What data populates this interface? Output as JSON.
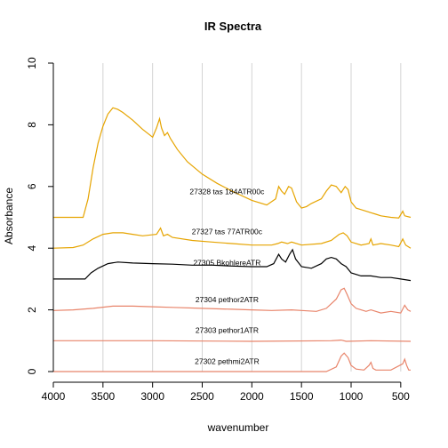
{
  "chart_data": {
    "type": "line",
    "title": "IR Spectra",
    "xlabel": "wavenumber",
    "ylabel": "Absorbance",
    "xlim": [
      4000,
      400
    ],
    "ylim": [
      0,
      10
    ],
    "reverse_x": true,
    "grid": "vertical",
    "x_ticks": [
      4000,
      3500,
      3000,
      2500,
      2000,
      1500,
      1000,
      500
    ],
    "y_ticks": [
      0,
      2,
      4,
      6,
      8,
      10
    ],
    "x_tick_labels": [
      "4000",
      "3500",
      "3000",
      "2500",
      "2000",
      "1500",
      "1000",
      "500"
    ],
    "y_tick_labels": [
      "0",
      "2",
      "4",
      "6",
      "8",
      "10"
    ],
    "series": [
      {
        "label": "27302 pethmi2ATR",
        "color": "#e8846a",
        "label_pos": [
          2250,
          0.25
        ],
        "points": [
          [
            4000,
            0
          ],
          [
            1250,
            0
          ],
          [
            1150,
            0.15
          ],
          [
            1100,
            0.5
          ],
          [
            1070,
            0.6
          ],
          [
            1030,
            0.45
          ],
          [
            1000,
            0.2
          ],
          [
            950,
            0.08
          ],
          [
            870,
            0.05
          ],
          [
            820,
            0.2
          ],
          [
            800,
            0.3
          ],
          [
            780,
            0.1
          ],
          [
            750,
            0.05
          ],
          [
            600,
            0.05
          ],
          [
            480,
            0.25
          ],
          [
            460,
            0.4
          ],
          [
            440,
            0.2
          ],
          [
            420,
            0.05
          ],
          [
            400,
            0.05
          ]
        ]
      },
      {
        "label": "27303 pethor1ATR",
        "color": "#e8846a",
        "label_pos": [
          2250,
          1.25
        ],
        "points": [
          [
            4000,
            1
          ],
          [
            3000,
            1
          ],
          [
            2000,
            0.98
          ],
          [
            1200,
            1.0
          ],
          [
            1100,
            1.02
          ],
          [
            1050,
            0.98
          ],
          [
            800,
            1.0
          ],
          [
            400,
            0.98
          ]
        ]
      },
      {
        "label": "27304 pethor2ATR",
        "color": "#e8846a",
        "label_pos": [
          2250,
          2.25
        ],
        "points": [
          [
            4000,
            1.98
          ],
          [
            3800,
            2.0
          ],
          [
            3600,
            2.05
          ],
          [
            3400,
            2.12
          ],
          [
            3200,
            2.12
          ],
          [
            3000,
            2.1
          ],
          [
            2800,
            2.08
          ],
          [
            2500,
            2.05
          ],
          [
            2200,
            2.02
          ],
          [
            2000,
            2.0
          ],
          [
            1800,
            1.98
          ],
          [
            1600,
            2.0
          ],
          [
            1500,
            1.98
          ],
          [
            1350,
            1.95
          ],
          [
            1250,
            2.05
          ],
          [
            1150,
            2.35
          ],
          [
            1100,
            2.65
          ],
          [
            1070,
            2.7
          ],
          [
            1040,
            2.5
          ],
          [
            1000,
            2.2
          ],
          [
            950,
            2.05
          ],
          [
            900,
            2.0
          ],
          [
            850,
            1.95
          ],
          [
            800,
            2.0
          ],
          [
            700,
            1.9
          ],
          [
            600,
            1.95
          ],
          [
            500,
            1.9
          ],
          [
            460,
            2.15
          ],
          [
            430,
            2.0
          ],
          [
            400,
            1.95
          ]
        ]
      },
      {
        "label": "27305 BkohlereATR",
        "color": "#000000",
        "label_pos": [
          2250,
          3.45
        ],
        "points": [
          [
            4000,
            3.0
          ],
          [
            3680,
            3.0
          ],
          [
            3620,
            3.2
          ],
          [
            3550,
            3.35
          ],
          [
            3450,
            3.5
          ],
          [
            3350,
            3.55
          ],
          [
            3200,
            3.52
          ],
          [
            3000,
            3.5
          ],
          [
            2800,
            3.48
          ],
          [
            2600,
            3.45
          ],
          [
            2400,
            3.45
          ],
          [
            2200,
            3.42
          ],
          [
            2000,
            3.4
          ],
          [
            1850,
            3.4
          ],
          [
            1780,
            3.5
          ],
          [
            1730,
            3.8
          ],
          [
            1700,
            3.65
          ],
          [
            1660,
            3.55
          ],
          [
            1620,
            3.8
          ],
          [
            1590,
            3.95
          ],
          [
            1560,
            3.65
          ],
          [
            1500,
            3.4
          ],
          [
            1400,
            3.35
          ],
          [
            1300,
            3.5
          ],
          [
            1250,
            3.65
          ],
          [
            1200,
            3.7
          ],
          [
            1150,
            3.65
          ],
          [
            1100,
            3.5
          ],
          [
            1050,
            3.4
          ],
          [
            1000,
            3.2
          ],
          [
            950,
            3.15
          ],
          [
            900,
            3.1
          ],
          [
            800,
            3.1
          ],
          [
            700,
            3.05
          ],
          [
            600,
            3.05
          ],
          [
            500,
            3.0
          ],
          [
            400,
            2.95
          ]
        ]
      },
      {
        "label": "27327 tas 77ATR00c",
        "color": "#e6a400",
        "label_pos": [
          2250,
          4.45
        ],
        "points": [
          [
            4000,
            4.0
          ],
          [
            3800,
            4.02
          ],
          [
            3700,
            4.1
          ],
          [
            3600,
            4.3
          ],
          [
            3500,
            4.45
          ],
          [
            3400,
            4.5
          ],
          [
            3300,
            4.5
          ],
          [
            3200,
            4.45
          ],
          [
            3100,
            4.4
          ],
          [
            2960,
            4.45
          ],
          [
            2920,
            4.65
          ],
          [
            2890,
            4.4
          ],
          [
            2850,
            4.45
          ],
          [
            2800,
            4.35
          ],
          [
            2600,
            4.25
          ],
          [
            2400,
            4.2
          ],
          [
            2200,
            4.15
          ],
          [
            2000,
            4.1
          ],
          [
            1800,
            4.1
          ],
          [
            1740,
            4.15
          ],
          [
            1700,
            4.2
          ],
          [
            1640,
            4.15
          ],
          [
            1600,
            4.2
          ],
          [
            1500,
            4.1
          ],
          [
            1300,
            4.15
          ],
          [
            1200,
            4.25
          ],
          [
            1120,
            4.45
          ],
          [
            1080,
            4.5
          ],
          [
            1040,
            4.4
          ],
          [
            1000,
            4.2
          ],
          [
            900,
            4.1
          ],
          [
            820,
            4.15
          ],
          [
            800,
            4.3
          ],
          [
            780,
            4.1
          ],
          [
            700,
            4.15
          ],
          [
            600,
            4.1
          ],
          [
            520,
            4.05
          ],
          [
            480,
            4.3
          ],
          [
            450,
            4.1
          ],
          [
            400,
            4.0
          ]
        ]
      },
      {
        "label": "27328 tas 184ATR00c",
        "color": "#e6a400",
        "label_pos": [
          2250,
          5.75
        ],
        "points": [
          [
            4000,
            5.0
          ],
          [
            3700,
            5.0
          ],
          [
            3650,
            5.6
          ],
          [
            3600,
            6.6
          ],
          [
            3550,
            7.4
          ],
          [
            3500,
            7.95
          ],
          [
            3450,
            8.35
          ],
          [
            3400,
            8.55
          ],
          [
            3350,
            8.5
          ],
          [
            3300,
            8.4
          ],
          [
            3200,
            8.15
          ],
          [
            3100,
            7.85
          ],
          [
            3000,
            7.6
          ],
          [
            2960,
            7.9
          ],
          [
            2930,
            8.2
          ],
          [
            2910,
            7.9
          ],
          [
            2880,
            7.65
          ],
          [
            2850,
            7.75
          ],
          [
            2820,
            7.55
          ],
          [
            2750,
            7.2
          ],
          [
            2650,
            6.8
          ],
          [
            2500,
            6.4
          ],
          [
            2350,
            6.1
          ],
          [
            2200,
            5.85
          ],
          [
            2000,
            5.55
          ],
          [
            1850,
            5.4
          ],
          [
            1760,
            5.6
          ],
          [
            1730,
            6.0
          ],
          [
            1700,
            5.85
          ],
          [
            1670,
            5.75
          ],
          [
            1630,
            6.0
          ],
          [
            1600,
            5.95
          ],
          [
            1550,
            5.5
          ],
          [
            1500,
            5.3
          ],
          [
            1450,
            5.35
          ],
          [
            1400,
            5.45
          ],
          [
            1300,
            5.6
          ],
          [
            1250,
            5.85
          ],
          [
            1200,
            6.05
          ],
          [
            1150,
            6.0
          ],
          [
            1100,
            5.8
          ],
          [
            1060,
            6.0
          ],
          [
            1030,
            5.9
          ],
          [
            1000,
            5.5
          ],
          [
            950,
            5.3
          ],
          [
            900,
            5.25
          ],
          [
            850,
            5.2
          ],
          [
            800,
            5.15
          ],
          [
            750,
            5.1
          ],
          [
            700,
            5.05
          ],
          [
            600,
            5.0
          ],
          [
            520,
            4.98
          ],
          [
            480,
            5.2
          ],
          [
            460,
            5.05
          ],
          [
            400,
            5.0
          ]
        ]
      }
    ]
  }
}
